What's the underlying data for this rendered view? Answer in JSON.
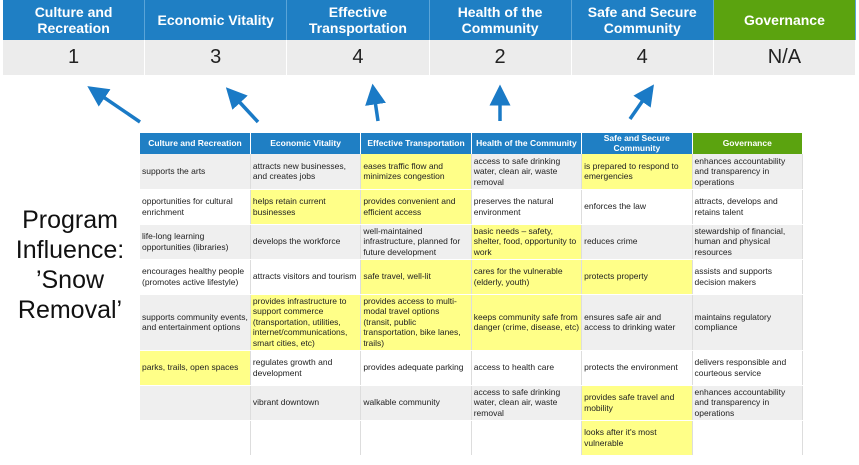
{
  "summary": {
    "headers": [
      "Culture and Recreation",
      "Economic Vitality",
      "Effective Transportation",
      "Health of the Community",
      "Safe and Secure Community",
      "Governance"
    ],
    "scores": [
      "1",
      "3",
      "4",
      "2",
      "4",
      "N/A"
    ]
  },
  "side_label": {
    "line1": "Program",
    "line2": "Influence:",
    "line3": "’Snow",
    "line4": "Removal’"
  },
  "table": {
    "headers": [
      "Culture and Recreation",
      "Economic Vitality",
      "Effective Transportation",
      "Health of the Community",
      "Safe and Secure Community",
      "Governance"
    ],
    "rows": [
      [
        "supports the arts",
        "attracts new businesses, and creates jobs",
        "eases traffic flow and minimizes congestion",
        "access to safe drinking water, clean air, waste removal",
        "is prepared to respond to emergencies",
        "enhances accountability and transparency in operations"
      ],
      [
        "opportunities for cultural enrichment",
        "helps retain current businesses",
        "provides convenient and efficient access",
        "preserves the natural environment",
        "enforces the law",
        "attracts, develops and retains talent"
      ],
      [
        "life-long learning opportunities (libraries)",
        "develops the workforce",
        "well-maintained infrastructure, planned for future development",
        "basic needs – safety, shelter, food, opportunity to work",
        "reduces crime",
        "stewardship of financial, human and physical resources"
      ],
      [
        "encourages healthy people (promotes active lifestyle)",
        "attracts visitors and tourism",
        "safe travel, well-lit",
        "cares for the vulnerable (elderly, youth)",
        "protects property",
        "assists and supports decision makers"
      ],
      [
        "supports community events, and entertainment options",
        "provides infrastructure to support commerce (transportation, utilities, internet/communications, smart cities, etc)",
        "provides access to multi-modal travel options (transit, public transportation, bike lanes, trails)",
        "keeps community safe from danger (crime, disease, etc)",
        "ensures safe air and access to drinking water",
        "maintains regulatory compliance"
      ],
      [
        "parks, trails, open spaces",
        "regulates growth and development",
        "provides adequate parking",
        "access to health care",
        "protects the environment",
        "delivers responsible and courteous service"
      ],
      [
        "",
        "vibrant downtown",
        "walkable community",
        "access to safe drinking water, clean air, waste removal",
        "provides safe travel and mobility",
        "enhances accountability and transparency in operations"
      ],
      [
        "",
        "",
        "",
        "",
        "looks after it's most vulnerable",
        ""
      ]
    ],
    "highlighted": [
      [
        2,
        4
      ],
      [
        1,
        2
      ],
      [
        3
      ],
      [
        2,
        3,
        4
      ],
      [
        1,
        2,
        3
      ],
      [
        0
      ],
      [
        4
      ],
      [
        4
      ]
    ]
  },
  "colors": {
    "header_blue": "#1f7fc4",
    "governance_green": "#5ba30f",
    "highlight_yellow": "#ffff88",
    "arrow_blue": "#1a7ac6"
  }
}
